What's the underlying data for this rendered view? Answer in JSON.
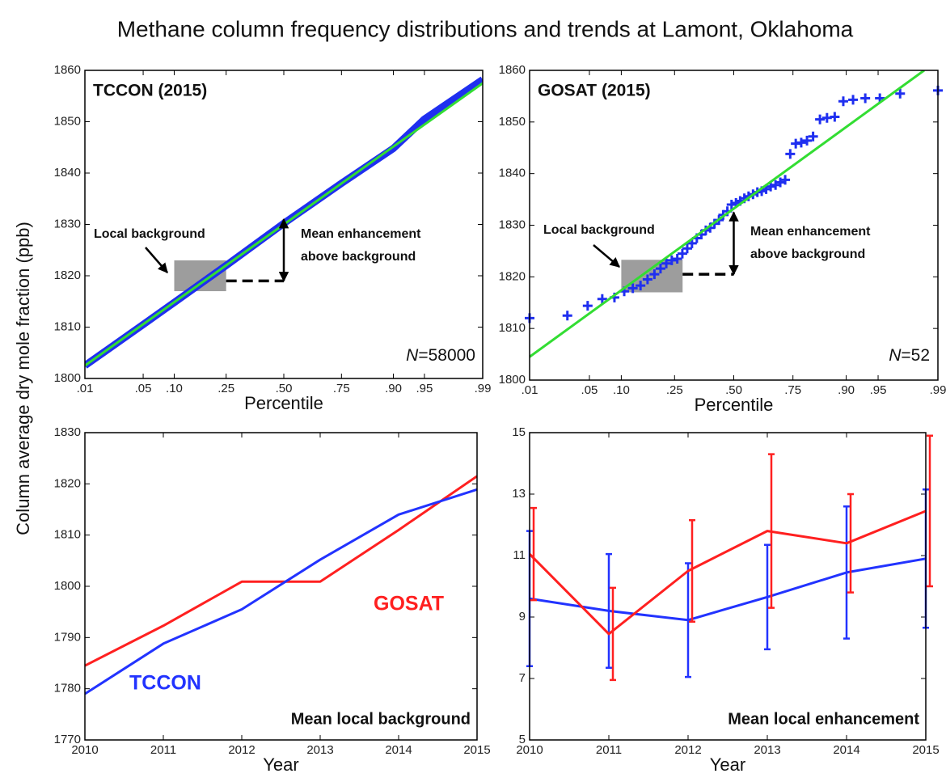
{
  "title": "Methane column frequency distributions and trends at Lamont, Oklahoma",
  "ylabel": "Column average dry mole fraction (ppb)",
  "chart_data": [
    {
      "type": "line",
      "title": "TCCON (2015)",
      "xlabel": "Percentile",
      "xscale": "probit",
      "xlim": [
        0.01,
        0.99
      ],
      "xticks": [
        {
          "value": 0.01,
          "label": ".01"
        },
        {
          "value": 0.05,
          "label": ".05"
        },
        {
          "value": 0.1,
          "label": ".10"
        },
        {
          "value": 0.25,
          "label": ".25"
        },
        {
          "value": 0.5,
          "label": ".50"
        },
        {
          "value": 0.75,
          "label": ".75"
        },
        {
          "value": 0.9,
          "label": ".90"
        },
        {
          "value": 0.95,
          "label": ".95"
        },
        {
          "value": 0.99,
          "label": ".99"
        }
      ],
      "ylim": [
        1800,
        1860
      ],
      "yticks": [
        1800,
        1810,
        1820,
        1830,
        1840,
        1850,
        1860
      ],
      "series": [
        {
          "color": "#1f2ff0",
          "x": [
            0.01,
            0.05,
            0.1,
            0.25,
            0.5,
            0.75,
            0.9,
            0.95,
            0.99
          ],
          "values": [
            1802.5,
            1810.5,
            1814.8,
            1822,
            1830.2,
            1838,
            1844.8,
            1850.5,
            1858.2
          ]
        },
        {
          "color": "#33dd33",
          "x": [
            0.01,
            0.99
          ],
          "values": [
            1802.5,
            1857.5
          ]
        }
      ],
      "background": {
        "x": [
          0.1,
          0.25
        ],
        "y": [
          1817,
          1823
        ]
      },
      "enhancement": {
        "x": 0.5,
        "from": 1819,
        "to": 1831
      },
      "background_label": "Local background",
      "enhancement_label": [
        "Mean enhancement",
        "above background"
      ],
      "sample_size": "N=58000"
    },
    {
      "type": "line",
      "title": "GOSAT (2015)",
      "xlabel": "Percentile",
      "xscale": "probit",
      "xlim": [
        0.01,
        0.99
      ],
      "xticks": [
        {
          "value": 0.01,
          "label": ".01"
        },
        {
          "value": 0.05,
          "label": ".05"
        },
        {
          "value": 0.1,
          "label": ".10"
        },
        {
          "value": 0.25,
          "label": ".25"
        },
        {
          "value": 0.5,
          "label": ".50"
        },
        {
          "value": 0.75,
          "label": ".75"
        },
        {
          "value": 0.9,
          "label": ".90"
        },
        {
          "value": 0.95,
          "label": ".95"
        },
        {
          "value": 0.99,
          "label": ".99"
        }
      ],
      "ylim": [
        1800,
        1860
      ],
      "yticks": [
        1800,
        1810,
        1820,
        1830,
        1840,
        1850,
        1860
      ],
      "series": [
        {
          "color": "#1f2ff0",
          "marker": "+",
          "x": [
            0.01,
            0.029,
            0.048,
            0.067,
            0.087,
            0.106,
            0.125,
            0.144,
            0.163,
            0.183,
            0.202,
            0.221,
            0.24,
            0.26,
            0.279,
            0.298,
            0.317,
            0.337,
            0.356,
            0.375,
            0.394,
            0.413,
            0.433,
            0.452,
            0.471,
            0.49,
            0.51,
            0.529,
            0.548,
            0.567,
            0.587,
            0.606,
            0.625,
            0.644,
            0.663,
            0.683,
            0.702,
            0.721,
            0.74,
            0.76,
            0.779,
            0.798,
            0.817,
            0.837,
            0.856,
            0.875,
            0.894,
            0.913,
            0.933,
            0.952,
            0.971,
            0.99
          ],
          "values": [
            1812.0,
            1812.5,
            1814.4,
            1815.7,
            1816.0,
            1817.2,
            1817.8,
            1818.3,
            1819.5,
            1820.5,
            1821.6,
            1822.6,
            1823.2,
            1823.5,
            1824.5,
            1825.5,
            1826.5,
            1827.5,
            1828.2,
            1829.0,
            1829.5,
            1830.3,
            1831.0,
            1832.0,
            1832.7,
            1834.0,
            1834.3,
            1834.7,
            1835.2,
            1835.6,
            1836.0,
            1836.4,
            1836.6,
            1837.0,
            1837.5,
            1837.8,
            1838.3,
            1838.8,
            1843.8,
            1845.8,
            1846.0,
            1846.4,
            1847.2,
            1850.5,
            1850.8,
            1851.0,
            1854.0,
            1854.3,
            1854.6,
            1854.6,
            1855.5,
            1856.1
          ]
        },
        {
          "color": "#33dd33",
          "x": [
            0.01,
            0.985
          ],
          "values": [
            1804.5,
            1860
          ]
        }
      ],
      "background": {
        "x": [
          0.1,
          0.28
        ],
        "y": [
          1817,
          1823.3
        ]
      },
      "enhancement": {
        "x": 0.5,
        "from": 1820.5,
        "to": 1832.5
      },
      "background_label": "Local background",
      "enhancement_label": [
        "Mean enhancement",
        "above background"
      ],
      "sample_size": "N=52"
    },
    {
      "type": "line",
      "xlabel": "Year",
      "label": "Mean local background",
      "xlim": [
        2010,
        2015
      ],
      "xticks": [
        2010,
        2011,
        2012,
        2013,
        2014,
        2015
      ],
      "ylim": [
        1770,
        1830
      ],
      "yticks": [
        1770,
        1780,
        1790,
        1800,
        1810,
        1820,
        1830
      ],
      "x": [
        2010,
        2011,
        2012,
        2013,
        2014,
        2015
      ],
      "series": [
        {
          "name": "GOSAT",
          "color": "#ff2020",
          "values": [
            1784.5,
            1792.3,
            1800.9,
            1800.9,
            1811,
            1821.5
          ]
        },
        {
          "name": "TCCON",
          "color": "#2233ff",
          "values": [
            1779,
            1788.8,
            1795.5,
            1805.2,
            1814,
            1818.9
          ]
        }
      ]
    },
    {
      "type": "line",
      "xlabel": "Year",
      "label": "Mean local enhancement",
      "xlim": [
        2010,
        2015
      ],
      "xticks": [
        2010,
        2011,
        2012,
        2013,
        2014,
        2015
      ],
      "ylim": [
        5,
        15
      ],
      "yticks": [
        5,
        7,
        9,
        11,
        13,
        15
      ],
      "x": [
        2010,
        2011,
        2012,
        2013,
        2014,
        2015
      ],
      "series": [
        {
          "color": "#2233ff",
          "values": [
            9.6,
            9.2,
            8.9,
            9.65,
            10.45,
            10.9
          ],
          "errors": [
            2.2,
            1.85,
            1.85,
            1.7,
            2.15,
            2.25
          ]
        },
        {
          "color": "#ff2020",
          "values": [
            11.05,
            8.45,
            10.5,
            11.8,
            11.4,
            12.45
          ],
          "errors": [
            1.5,
            1.5,
            1.65,
            2.5,
            1.6,
            2.45
          ]
        }
      ]
    }
  ]
}
